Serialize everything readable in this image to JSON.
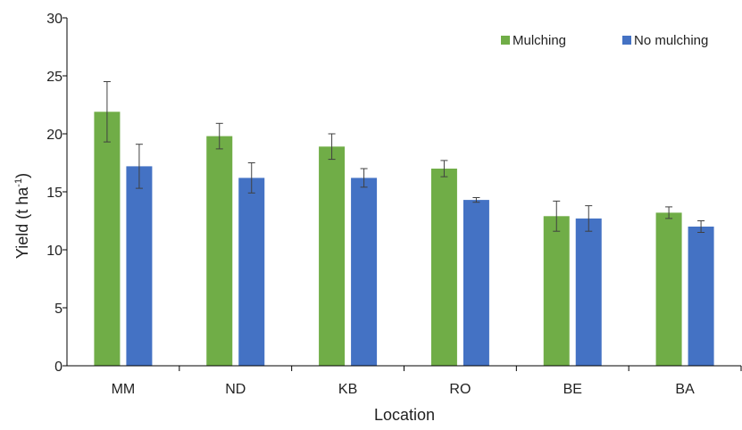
{
  "chart_data": {
    "type": "bar",
    "categories": [
      "MM",
      "ND",
      "KB",
      "RO",
      "BE",
      "BA"
    ],
    "series": [
      {
        "name": "Mulching",
        "color": "#70ad47",
        "values": [
          21.9,
          19.8,
          18.9,
          17.0,
          12.9,
          13.2
        ],
        "errors": [
          2.6,
          1.1,
          1.1,
          0.7,
          1.3,
          0.5
        ]
      },
      {
        "name": "No mulching",
        "color": "#4472c4",
        "values": [
          17.2,
          16.2,
          16.2,
          14.3,
          12.7,
          12.0
        ],
        "errors": [
          1.9,
          1.3,
          0.8,
          0.2,
          1.1,
          0.5
        ]
      }
    ],
    "xlabel": "Location",
    "ylabel": "Yield (t ha",
    "ylabel_sup": "-1",
    "ylabel_close": ")",
    "ylim": [
      0,
      30
    ],
    "yticks": [
      "0",
      "5",
      "10",
      "15",
      "20",
      "25",
      "30"
    ],
    "grid": false,
    "legend_position": "top-right",
    "error_bar_color": "#404040",
    "axis_color": "#000000"
  }
}
